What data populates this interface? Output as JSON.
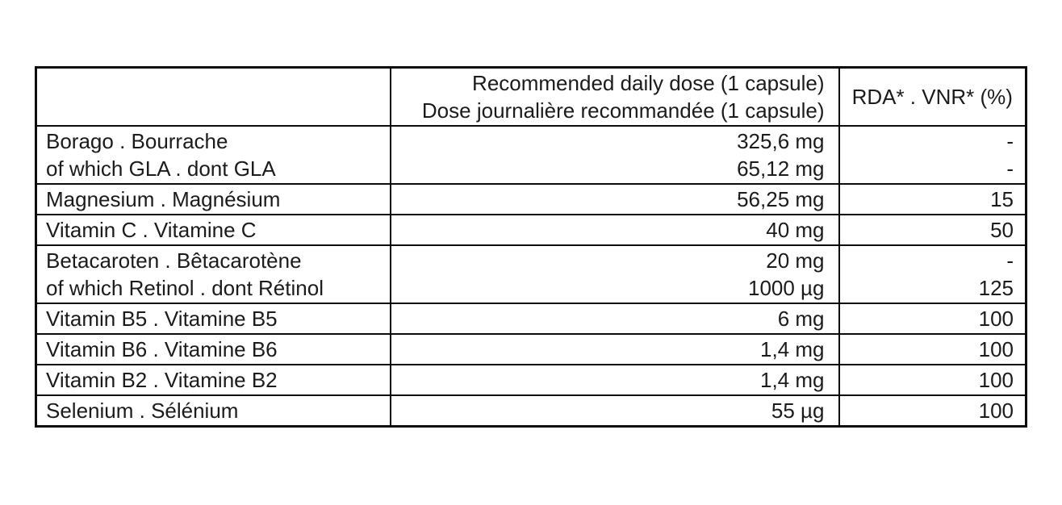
{
  "page": {
    "background_color": "#ffffff",
    "text_color": "#1b1b1b",
    "border_color": "#0c0c0c"
  },
  "table": {
    "header": {
      "nutrient": "",
      "dose_en": "Recommended daily dose (1 capsule)",
      "dose_fr": "Dose journalière recommandée (1 capsule)",
      "rda": "RDA* . VNR* (%)"
    },
    "rows": [
      {
        "name_lines": [
          "Borago . Bourrache",
          "of which GLA . dont GLA"
        ],
        "dose_lines": [
          "325,6 mg",
          "65,12 mg"
        ],
        "rda_lines": [
          "-",
          "-"
        ]
      },
      {
        "name_lines": [
          "Magnesium . Magnésium"
        ],
        "dose_lines": [
          "56,25 mg"
        ],
        "rda_lines": [
          "15"
        ]
      },
      {
        "name_lines": [
          "Vitamin C . Vitamine C"
        ],
        "dose_lines": [
          "40 mg"
        ],
        "rda_lines": [
          "50"
        ]
      },
      {
        "name_lines": [
          "Betacaroten . Bêtacarotène",
          "of which Retinol . dont Rétinol"
        ],
        "dose_lines": [
          "20 mg",
          "1000 µg"
        ],
        "rda_lines": [
          "-",
          "125"
        ]
      },
      {
        "name_lines": [
          "Vitamin B5 . Vitamine B5"
        ],
        "dose_lines": [
          "6 mg"
        ],
        "rda_lines": [
          "100"
        ]
      },
      {
        "name_lines": [
          "Vitamin B6 . Vitamine B6"
        ],
        "dose_lines": [
          "1,4 mg"
        ],
        "rda_lines": [
          "100"
        ]
      },
      {
        "name_lines": [
          "Vitamin B2 . Vitamine B2"
        ],
        "dose_lines": [
          "1,4 mg"
        ],
        "rda_lines": [
          "100"
        ]
      },
      {
        "name_lines": [
          "Selenium . Sélénium"
        ],
        "dose_lines": [
          "55 µg"
        ],
        "rda_lines": [
          "100"
        ]
      }
    ]
  }
}
